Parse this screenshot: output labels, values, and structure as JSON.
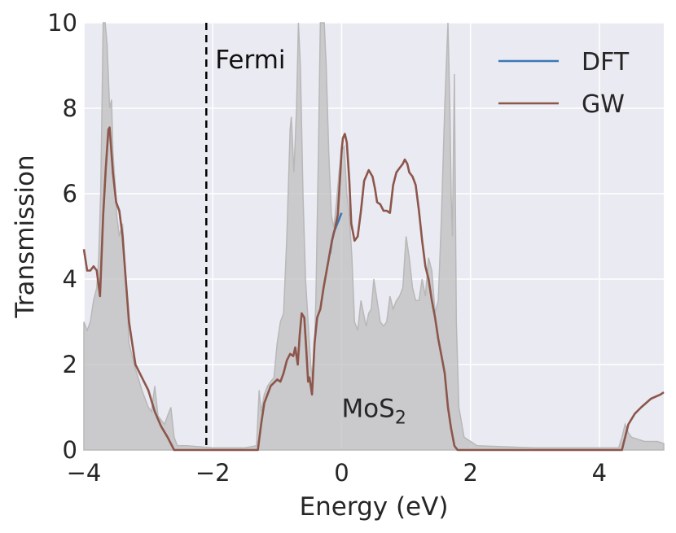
{
  "chart_data": {
    "type": "line",
    "xlabel": "Energy (eV)",
    "ylabel": "Transmission",
    "xlim": [
      -4,
      5
    ],
    "ylim": [
      0,
      10
    ],
    "x_ticks": [
      -4,
      -2,
      0,
      2,
      4
    ],
    "x_tick_labels": [
      "−4",
      "−2",
      "0",
      "2",
      "4"
    ],
    "y_ticks": [
      0,
      2,
      4,
      6,
      8,
      10
    ],
    "y_tick_labels": [
      "0",
      "2",
      "4",
      "6",
      "8",
      "10"
    ],
    "grid": true,
    "legend_position": "top-right",
    "fermi": {
      "label": "Fermi",
      "x": -2.1
    },
    "annotation": {
      "text": "MoS",
      "subscript": "2",
      "x": 0.0,
      "y": 1.0
    },
    "series": [
      {
        "name": "DFT",
        "color": "#3a78b5",
        "points": [
          [
            -0.18,
            4.6
          ],
          [
            -0.15,
            4.9
          ],
          [
            -0.12,
            5.1
          ],
          [
            -0.08,
            5.25
          ],
          [
            -0.04,
            5.4
          ],
          [
            0.0,
            5.55
          ]
        ]
      },
      {
        "name": "GW",
        "color": "#8c564b",
        "points": [
          [
            -4.0,
            4.7
          ],
          [
            -3.95,
            4.2
          ],
          [
            -3.9,
            4.2
          ],
          [
            -3.85,
            4.3
          ],
          [
            -3.8,
            4.2
          ],
          [
            -3.75,
            3.6
          ],
          [
            -3.7,
            5.5
          ],
          [
            -3.66,
            6.6
          ],
          [
            -3.62,
            7.5
          ],
          [
            -3.6,
            7.55
          ],
          [
            -3.55,
            6.5
          ],
          [
            -3.5,
            5.8
          ],
          [
            -3.45,
            5.6
          ],
          [
            -3.4,
            5.0
          ],
          [
            -3.35,
            4.0
          ],
          [
            -3.3,
            3.0
          ],
          [
            -3.25,
            2.5
          ],
          [
            -3.2,
            2.0
          ],
          [
            -3.1,
            1.7
          ],
          [
            -3.0,
            1.4
          ],
          [
            -2.9,
            0.9
          ],
          [
            -2.8,
            0.55
          ],
          [
            -2.7,
            0.3
          ],
          [
            -2.6,
            0.0
          ],
          [
            -1.3,
            0.0
          ],
          [
            -1.25,
            0.6
          ],
          [
            -1.2,
            1.1
          ],
          [
            -1.1,
            1.5
          ],
          [
            -1.0,
            1.65
          ],
          [
            -0.95,
            1.6
          ],
          [
            -0.9,
            1.8
          ],
          [
            -0.85,
            2.1
          ],
          [
            -0.8,
            2.25
          ],
          [
            -0.75,
            2.2
          ],
          [
            -0.72,
            2.4
          ],
          [
            -0.68,
            2.0
          ],
          [
            -0.65,
            2.7
          ],
          [
            -0.62,
            3.2
          ],
          [
            -0.58,
            3.1
          ],
          [
            -0.55,
            2.4
          ],
          [
            -0.52,
            1.6
          ],
          [
            -0.5,
            1.7
          ],
          [
            -0.46,
            1.3
          ],
          [
            -0.42,
            2.5
          ],
          [
            -0.38,
            3.1
          ],
          [
            -0.33,
            3.3
          ],
          [
            -0.28,
            3.8
          ],
          [
            -0.22,
            4.3
          ],
          [
            -0.15,
            4.9
          ],
          [
            -0.1,
            5.2
          ],
          [
            -0.06,
            5.5
          ],
          [
            -0.04,
            6.0
          ],
          [
            -0.02,
            6.5
          ],
          [
            0.0,
            7.0
          ],
          [
            0.02,
            7.3
          ],
          [
            0.05,
            7.4
          ],
          [
            0.08,
            7.2
          ],
          [
            0.12,
            6.3
          ],
          [
            0.15,
            5.3
          ],
          [
            0.2,
            4.9
          ],
          [
            0.25,
            5.0
          ],
          [
            0.3,
            5.6
          ],
          [
            0.35,
            6.3
          ],
          [
            0.42,
            6.55
          ],
          [
            0.48,
            6.4
          ],
          [
            0.52,
            6.1
          ],
          [
            0.55,
            5.8
          ],
          [
            0.6,
            5.75
          ],
          [
            0.65,
            5.6
          ],
          [
            0.7,
            5.6
          ],
          [
            0.75,
            5.55
          ],
          [
            0.8,
            6.2
          ],
          [
            0.85,
            6.5
          ],
          [
            0.9,
            6.6
          ],
          [
            0.95,
            6.7
          ],
          [
            0.98,
            6.8
          ],
          [
            1.02,
            6.7
          ],
          [
            1.05,
            6.5
          ],
          [
            1.1,
            6.4
          ],
          [
            1.15,
            6.2
          ],
          [
            1.2,
            5.6
          ],
          [
            1.25,
            4.9
          ],
          [
            1.3,
            4.3
          ],
          [
            1.35,
            4.0
          ],
          [
            1.4,
            3.5
          ],
          [
            1.45,
            3.1
          ],
          [
            1.5,
            2.6
          ],
          [
            1.55,
            2.2
          ],
          [
            1.6,
            1.8
          ],
          [
            1.65,
            1.0
          ],
          [
            1.7,
            0.5
          ],
          [
            1.75,
            0.1
          ],
          [
            1.8,
            0.0
          ],
          [
            4.35,
            0.0
          ],
          [
            4.4,
            0.3
          ],
          [
            4.45,
            0.6
          ],
          [
            4.55,
            0.85
          ],
          [
            4.65,
            1.0
          ],
          [
            4.8,
            1.2
          ],
          [
            4.95,
            1.3
          ],
          [
            5.0,
            1.35
          ]
        ]
      }
    ],
    "background_dos": {
      "color": "#bfbfbf",
      "points": [
        [
          -4.0,
          3.0
        ],
        [
          -3.95,
          2.8
        ],
        [
          -3.9,
          3.0
        ],
        [
          -3.85,
          3.5
        ],
        [
          -3.8,
          3.8
        ],
        [
          -3.77,
          4.5
        ],
        [
          -3.74,
          6.0
        ],
        [
          -3.72,
          8.0
        ],
        [
          -3.7,
          10.0
        ],
        [
          -3.67,
          10.0
        ],
        [
          -3.64,
          9.5
        ],
        [
          -3.6,
          8.0
        ],
        [
          -3.57,
          8.2
        ],
        [
          -3.55,
          7.0
        ],
        [
          -3.52,
          6.3
        ],
        [
          -3.49,
          5.5
        ],
        [
          -3.45,
          5.0
        ],
        [
          -3.4,
          5.3
        ],
        [
          -3.37,
          4.5
        ],
        [
          -3.33,
          3.5
        ],
        [
          -3.3,
          2.5
        ],
        [
          -3.25,
          2.2
        ],
        [
          -3.2,
          1.9
        ],
        [
          -3.1,
          1.4
        ],
        [
          -3.0,
          1.0
        ],
        [
          -2.95,
          0.9
        ],
        [
          -2.9,
          1.5
        ],
        [
          -2.85,
          0.8
        ],
        [
          -2.8,
          0.7
        ],
        [
          -2.75,
          0.6
        ],
        [
          -2.7,
          0.8
        ],
        [
          -2.65,
          1.0
        ],
        [
          -2.6,
          0.3
        ],
        [
          -2.55,
          0.1
        ],
        [
          -2.4,
          0.1
        ],
        [
          -2.0,
          0.05
        ],
        [
          -1.5,
          0.05
        ],
        [
          -1.32,
          0.1
        ],
        [
          -1.28,
          1.4
        ],
        [
          -1.25,
          0.9
        ],
        [
          -1.2,
          1.3
        ],
        [
          -1.15,
          1.5
        ],
        [
          -1.1,
          1.6
        ],
        [
          -1.05,
          1.7
        ],
        [
          -1.0,
          2.5
        ],
        [
          -0.95,
          3.0
        ],
        [
          -0.9,
          3.2
        ],
        [
          -0.85,
          5.0
        ],
        [
          -0.8,
          7.5
        ],
        [
          -0.78,
          7.8
        ],
        [
          -0.74,
          6.5
        ],
        [
          -0.7,
          8.0
        ],
        [
          -0.67,
          10.0
        ],
        [
          -0.64,
          9.0
        ],
        [
          -0.6,
          6.0
        ],
        [
          -0.56,
          4.0
        ],
        [
          -0.52,
          3.0
        ],
        [
          -0.48,
          2.0
        ],
        [
          -0.44,
          1.5
        ],
        [
          -0.4,
          3.5
        ],
        [
          -0.36,
          7.0
        ],
        [
          -0.33,
          10.0
        ],
        [
          -0.27,
          10.0
        ],
        [
          -0.24,
          9.0
        ],
        [
          -0.2,
          7.0
        ],
        [
          -0.16,
          5.5
        ],
        [
          -0.12,
          5.2
        ],
        [
          -0.08,
          5.8
        ],
        [
          -0.04,
          6.5
        ],
        [
          0.0,
          7.0
        ],
        [
          0.04,
          7.1
        ],
        [
          0.08,
          6.0
        ],
        [
          0.12,
          5.5
        ],
        [
          0.16,
          4.5
        ],
        [
          0.2,
          3.0
        ],
        [
          0.25,
          2.8
        ],
        [
          0.3,
          3.5
        ],
        [
          0.34,
          3.2
        ],
        [
          0.38,
          2.9
        ],
        [
          0.42,
          3.2
        ],
        [
          0.46,
          3.3
        ],
        [
          0.5,
          4.0
        ],
        [
          0.55,
          3.5
        ],
        [
          0.6,
          3.0
        ],
        [
          0.65,
          2.9
        ],
        [
          0.7,
          3.0
        ],
        [
          0.75,
          3.6
        ],
        [
          0.8,
          3.3
        ],
        [
          0.85,
          3.5
        ],
        [
          0.9,
          3.6
        ],
        [
          0.95,
          3.8
        ],
        [
          1.0,
          5.0
        ],
        [
          1.05,
          4.5
        ],
        [
          1.1,
          3.8
        ],
        [
          1.15,
          3.5
        ],
        [
          1.2,
          3.5
        ],
        [
          1.25,
          4.0
        ],
        [
          1.3,
          3.6
        ],
        [
          1.35,
          4.5
        ],
        [
          1.4,
          4.2
        ],
        [
          1.45,
          3.2
        ],
        [
          1.5,
          3.5
        ],
        [
          1.55,
          5.5
        ],
        [
          1.6,
          8.0
        ],
        [
          1.65,
          10.0
        ],
        [
          1.68,
          8.0
        ],
        [
          1.7,
          6.0
        ],
        [
          1.72,
          5.0
        ],
        [
          1.75,
          8.8
        ],
        [
          1.78,
          3.0
        ],
        [
          1.82,
          1.0
        ],
        [
          1.9,
          0.3
        ],
        [
          2.1,
          0.1
        ],
        [
          3.0,
          0.05
        ],
        [
          4.3,
          0.05
        ],
        [
          4.35,
          0.3
        ],
        [
          4.4,
          0.6
        ],
        [
          4.45,
          0.4
        ],
        [
          4.5,
          0.3
        ],
        [
          4.7,
          0.2
        ],
        [
          4.9,
          0.2
        ],
        [
          5.0,
          0.15
        ]
      ]
    }
  }
}
